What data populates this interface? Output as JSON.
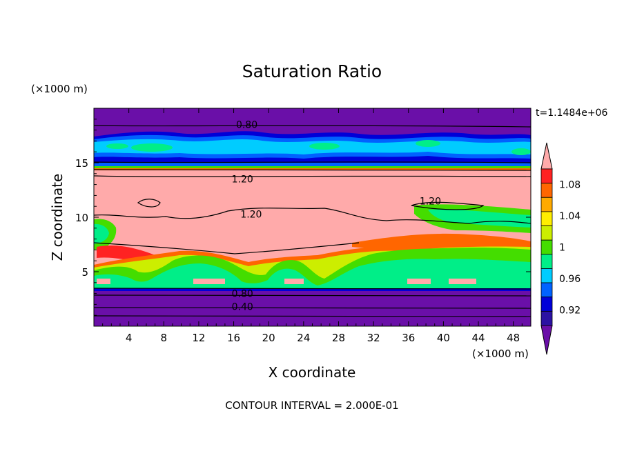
{
  "chart_data": {
    "type": "heatmap",
    "title": "Saturation Ratio",
    "xlabel": "X coordinate",
    "ylabel": "Z coordinate",
    "x_unit": "(×1000 m)",
    "y_unit": "(×1000 m)",
    "time_label": "t=1.1484e+06",
    "footer": "CONTOUR INTERVAL = 2.000E-01",
    "xlim": [
      0,
      50
    ],
    "ylim": [
      0,
      20
    ],
    "x_ticks": [
      "4",
      "8",
      "12",
      "16",
      "20",
      "24",
      "28",
      "32",
      "36",
      "40",
      "44",
      "48"
    ],
    "y_ticks": [
      "5",
      "10",
      "15"
    ],
    "colorbar": {
      "ticks": [
        "0.92",
        "0.96",
        "1",
        "1.04",
        "1.08"
      ],
      "levels": [
        0.9,
        0.92,
        0.94,
        0.96,
        0.98,
        1.0,
        1.02,
        1.04,
        1.06,
        1.08,
        1.1
      ],
      "colors": [
        "#6a0fa8",
        "#2b12a3",
        "#0000d8",
        "#0062ff",
        "#00ccff",
        "#00ee88",
        "#44dd00",
        "#ccee00",
        "#ffee00",
        "#ffaa00",
        "#ff6600",
        "#ff2222",
        "#ffaaaa"
      ]
    },
    "contour_labels": [
      {
        "text": "0.80",
        "x": 17.5,
        "z": 18.5
      },
      {
        "text": "1.20",
        "x": 17.0,
        "z": 13.5
      },
      {
        "text": "1.20",
        "x": 18.0,
        "z": 10.3
      },
      {
        "text": "1.20",
        "x": 38.5,
        "z": 11.5
      },
      {
        "text": "0.80",
        "x": 17.0,
        "z": 3.0
      },
      {
        "text": "0.40",
        "x": 17.0,
        "z": 1.8
      }
    ]
  },
  "colors": {
    "deep_purple": "#6a0fa8",
    "pink": "#ffaaaa",
    "green": "#44dd00",
    "teal": "#00ee88"
  }
}
